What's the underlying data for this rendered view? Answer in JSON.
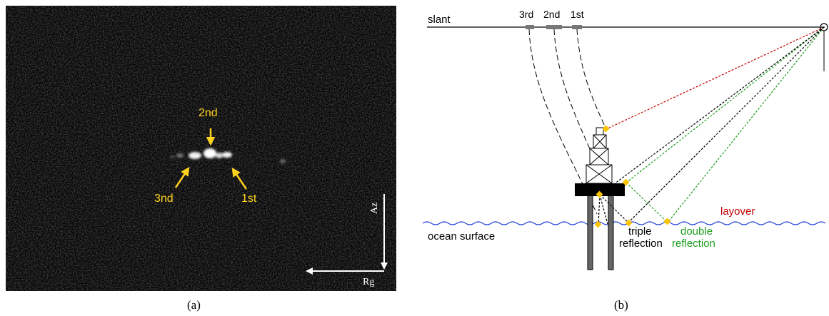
{
  "panel_a": {
    "caption": "(a)",
    "labels": {
      "second": "2nd",
      "third": "3nd",
      "first": "1st"
    },
    "axes": {
      "azimuth": "Az",
      "range": "Rg"
    },
    "colors": {
      "annotation": "#ffd21e",
      "background": "#060606",
      "axis": "#ffffff"
    }
  },
  "panel_b": {
    "caption": "(b)",
    "slant_label": "slant",
    "order_labels": {
      "third": "3rd",
      "second": "2nd",
      "first": "1st"
    },
    "ocean_label": "ocean surface",
    "layover_label": "layover",
    "triple_label": [
      "triple",
      "reflection"
    ],
    "double_label": [
      "double",
      "reflection"
    ],
    "colors": {
      "layover": "#c00000",
      "double": "#1e9e1e",
      "triple": "#000000",
      "ocean": "#1f3fd8",
      "marker": "#ffc400"
    }
  }
}
